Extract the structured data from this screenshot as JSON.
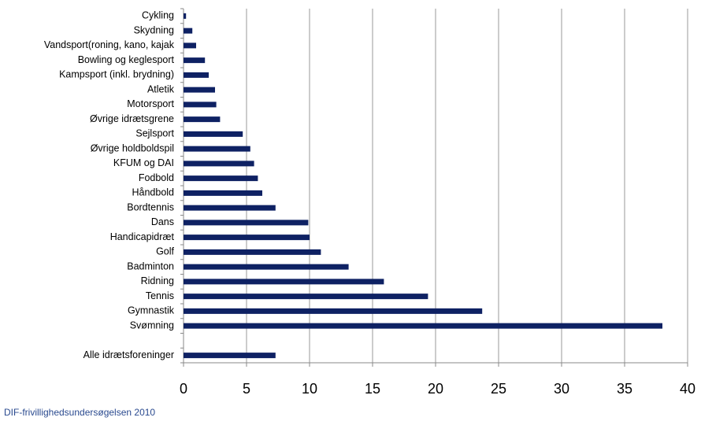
{
  "chart_data": {
    "type": "hbar",
    "orientation": "horizontal",
    "categories": [
      "Cykling",
      "Skydning",
      "Vandsport(roning, kano, kajak",
      "Bowling og keglesport",
      "Kampsport (inkl. brydning)",
      "Atletik",
      "Motorsport",
      "Øvrige idrætsgrene",
      "Sejlsport",
      "Øvrige holdboldspil",
      "KFUM og DAI",
      "Fodbold",
      "Håndbold",
      "Bordtennis",
      "Dans",
      "Handicapidræt",
      "Golf",
      "Badminton",
      "Ridning",
      "Tennis",
      "Gymnastik",
      "Svømning",
      null,
      "Alle idrætsforeninger"
    ],
    "values": [
      0.2,
      0.7,
      1.0,
      1.7,
      2.0,
      2.5,
      2.6,
      2.9,
      4.7,
      5.3,
      5.6,
      5.9,
      6.25,
      7.3,
      9.9,
      10.0,
      10.9,
      13.1,
      15.9,
      19.4,
      23.7,
      38.0,
      null,
      7.3
    ],
    "color": "#0e2163",
    "xlim": [
      0,
      40
    ],
    "xticks": [
      0,
      5,
      10,
      15,
      20,
      25,
      30,
      35,
      40
    ],
    "grid": true,
    "source": "DIF-frivillighedsundersøgelsen 2010"
  }
}
